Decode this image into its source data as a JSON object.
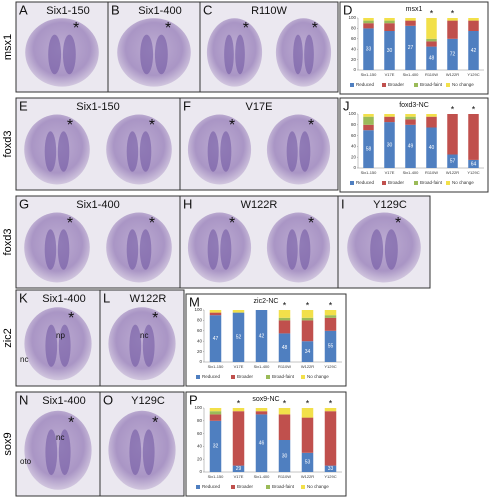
{
  "rows": [
    {
      "gene": "msx1"
    },
    {
      "gene": "foxd3"
    },
    {
      "gene": "foxd3"
    },
    {
      "gene": "zic2"
    },
    {
      "gene": "sox9"
    }
  ],
  "panels": [
    {
      "letter": "A",
      "title": "Six1-150",
      "marker": "*"
    },
    {
      "letter": "B",
      "title": "Six1-400",
      "marker": "*"
    },
    {
      "letter": "C",
      "title": "R110W",
      "marker": "*"
    },
    {
      "letter": "E",
      "title": "Six1-150",
      "marker": "*"
    },
    {
      "letter": "F",
      "title": "V17E",
      "marker": "*"
    },
    {
      "letter": "G",
      "title": "Six1-400",
      "marker": "*"
    },
    {
      "letter": "H",
      "title": "W122R",
      "marker": "*"
    },
    {
      "letter": "I",
      "title": "Y129C",
      "marker": "*"
    },
    {
      "letter": "K",
      "title": "Six1-400",
      "marker": "*",
      "notes": [
        "np",
        "nc"
      ]
    },
    {
      "letter": "L",
      "title": "W122R",
      "marker": "*",
      "notes": [
        "nc"
      ]
    },
    {
      "letter": "N",
      "title": "Six1-400",
      "marker": "*",
      "notes": [
        "nc",
        "oto"
      ]
    },
    {
      "letter": "O",
      "title": "Y129C",
      "marker": "*"
    }
  ],
  "chart_data": [
    {
      "type": "bar",
      "stacked": true,
      "panel": "D",
      "title": "msx1",
      "categories": [
        "Six1-150",
        "V17E",
        "Six1-400",
        "R110W",
        "W122R",
        "Y129C"
      ],
      "series": [
        {
          "name": "Reduced",
          "color": "#4f7fc0",
          "values": [
            80,
            75,
            85,
            45,
            60,
            75
          ]
        },
        {
          "name": "Broader",
          "color": "#c0504d",
          "values": [
            10,
            15,
            10,
            10,
            35,
            20
          ]
        },
        {
          "name": "Broad-faint",
          "color": "#9bbb59",
          "values": [
            5,
            5,
            0,
            5,
            0,
            0
          ]
        },
        {
          "name": "No change",
          "color": "#f2e04a",
          "values": [
            5,
            5,
            5,
            40,
            5,
            5
          ]
        }
      ],
      "sample_sizes": [
        33,
        30,
        27,
        48,
        72,
        42
      ],
      "significance": [
        null,
        null,
        null,
        "*",
        "*",
        null
      ],
      "ylim": [
        0,
        100
      ],
      "yticks": [
        0,
        20,
        40,
        60,
        80,
        100
      ]
    },
    {
      "type": "bar",
      "stacked": true,
      "panel": "J",
      "title": "foxd3-NC",
      "categories": [
        "Six1-150",
        "V17E",
        "Six1-400",
        "R110W",
        "W122R",
        "Y129C"
      ],
      "series": [
        {
          "name": "Reduced",
          "color": "#4f7fc0",
          "values": [
            70,
            85,
            80,
            75,
            25,
            15
          ]
        },
        {
          "name": "Broader",
          "color": "#c0504d",
          "values": [
            10,
            10,
            10,
            20,
            75,
            85
          ]
        },
        {
          "name": "Broad-faint",
          "color": "#9bbb59",
          "values": [
            15,
            0,
            5,
            0,
            0,
            0
          ]
        },
        {
          "name": "No change",
          "color": "#f2e04a",
          "values": [
            5,
            5,
            5,
            5,
            0,
            0
          ]
        }
      ],
      "sample_sizes": [
        58,
        30,
        49,
        40,
        57,
        64
      ],
      "significance": [
        null,
        null,
        null,
        null,
        "*",
        "*"
      ],
      "ylim": [
        0,
        100
      ],
      "yticks": [
        0,
        20,
        40,
        60,
        80,
        100
      ]
    },
    {
      "type": "bar",
      "stacked": true,
      "panel": "M",
      "title": "zic2-NC",
      "categories": [
        "Six1-150",
        "V17E",
        "Six1-400",
        "R110W",
        "W122R",
        "Y129C"
      ],
      "series": [
        {
          "name": "Reduced",
          "color": "#4f7fc0",
          "values": [
            90,
            95,
            100,
            55,
            40,
            60
          ]
        },
        {
          "name": "Broader",
          "color": "#c0504d",
          "values": [
            5,
            0,
            0,
            25,
            40,
            25
          ]
        },
        {
          "name": "Broad-faint",
          "color": "#9bbb59",
          "values": [
            0,
            0,
            0,
            5,
            5,
            5
          ]
        },
        {
          "name": "No change",
          "color": "#f2e04a",
          "values": [
            5,
            5,
            0,
            15,
            15,
            10
          ]
        }
      ],
      "sample_sizes": [
        47,
        52,
        42,
        48,
        34,
        55
      ],
      "significance": [
        null,
        null,
        null,
        "*",
        "*",
        "*"
      ],
      "ylim": [
        0,
        100
      ],
      "yticks": [
        0,
        20,
        40,
        60,
        80,
        100
      ]
    },
    {
      "type": "bar",
      "stacked": true,
      "panel": "P",
      "title": "sox9-NC",
      "categories": [
        "Six1-150",
        "V17E",
        "Six1-400",
        "R110W",
        "W122R",
        "Y129C"
      ],
      "series": [
        {
          "name": "Reduced",
          "color": "#4f7fc0",
          "values": [
            80,
            10,
            90,
            50,
            30,
            10
          ]
        },
        {
          "name": "Broader",
          "color": "#c0504d",
          "values": [
            10,
            85,
            5,
            40,
            55,
            85
          ]
        },
        {
          "name": "Broad-faint",
          "color": "#9bbb59",
          "values": [
            5,
            0,
            0,
            0,
            0,
            0
          ]
        },
        {
          "name": "No change",
          "color": "#f2e04a",
          "values": [
            5,
            5,
            5,
            10,
            15,
            5
          ]
        }
      ],
      "sample_sizes": [
        32,
        29,
        46,
        30,
        53,
        33
      ],
      "significance": [
        null,
        "*",
        null,
        "*",
        "*",
        "*"
      ],
      "ylim": [
        0,
        100
      ],
      "yticks": [
        0,
        20,
        40,
        60,
        80,
        100
      ]
    }
  ]
}
